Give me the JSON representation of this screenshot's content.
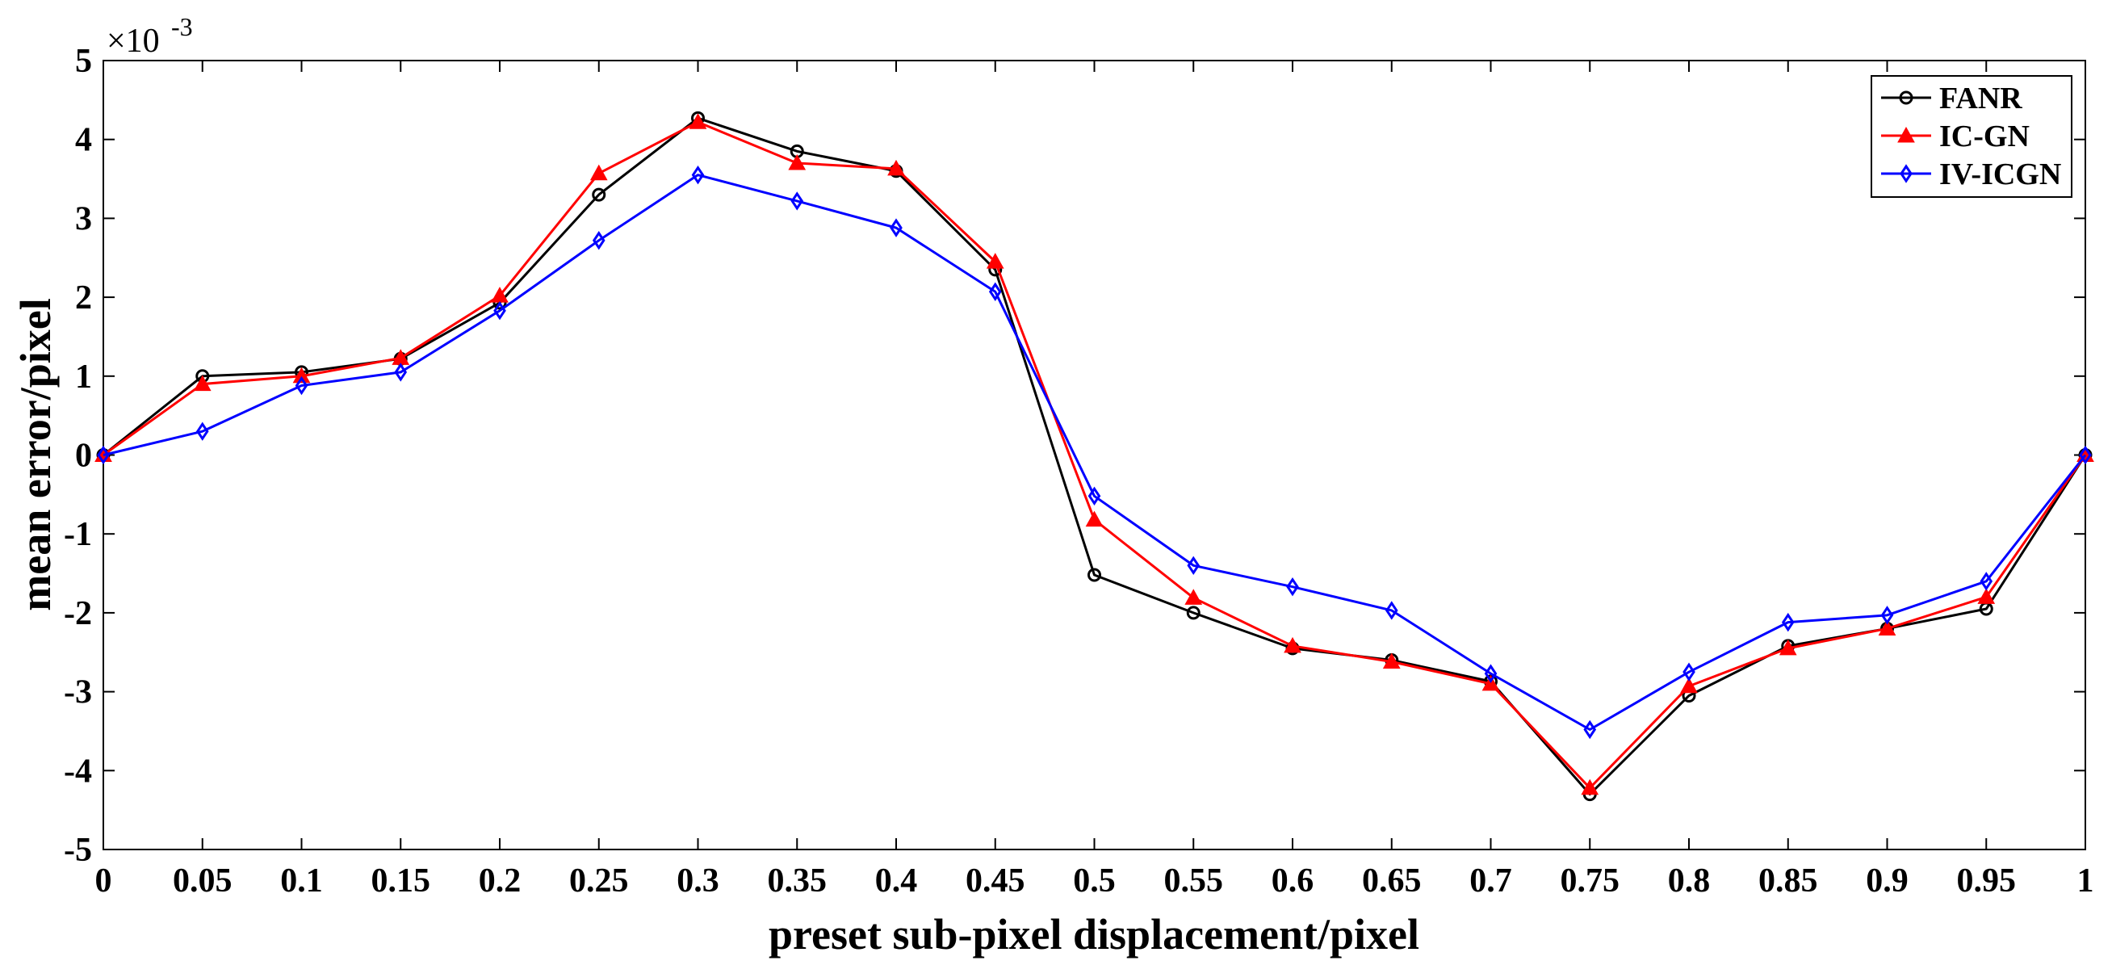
{
  "chart_data": {
    "type": "line",
    "title": "",
    "xlabel": "preset sub-pixel displacement/pixel",
    "ylabel": "mean error/pixel",
    "y_exponent_label": "×10",
    "y_exponent_power": "-3",
    "xlim": [
      0,
      1
    ],
    "ylim": [
      -5,
      5
    ],
    "x_ticks": [
      "0",
      "0.05",
      "0.1",
      "0.15",
      "0.2",
      "0.25",
      "0.3",
      "0.35",
      "0.4",
      "0.45",
      "0.5",
      "0.55",
      "0.6",
      "0.65",
      "0.7",
      "0.75",
      "0.8",
      "0.85",
      "0.9",
      "0.95",
      "1"
    ],
    "y_ticks": [
      "5",
      "4",
      "3",
      "2",
      "1",
      "0",
      "-1",
      "-2",
      "-3",
      "-4",
      "-5"
    ],
    "legend_position": "top-right",
    "x": [
      0,
      0.05,
      0.1,
      0.15,
      0.2,
      0.25,
      0.3,
      0.35,
      0.4,
      0.45,
      0.5,
      0.55,
      0.6,
      0.65,
      0.7,
      0.75,
      0.8,
      0.85,
      0.9,
      0.95,
      1
    ],
    "series": [
      {
        "name": "FANR",
        "color": "#000000",
        "marker": "circle",
        "values": [
          0,
          1.0,
          1.05,
          1.22,
          1.93,
          3.3,
          4.27,
          3.85,
          3.6,
          2.35,
          -1.52,
          -2.0,
          -2.45,
          -2.6,
          -2.87,
          -4.3,
          -3.05,
          -2.42,
          -2.2,
          -1.95,
          0
        ]
      },
      {
        "name": "IC-GN",
        "color": "#ff0000",
        "marker": "triangle",
        "values": [
          0,
          0.9,
          1.0,
          1.23,
          2.02,
          3.57,
          4.22,
          3.7,
          3.63,
          2.45,
          -0.82,
          -1.81,
          -2.42,
          -2.62,
          -2.9,
          -4.22,
          -2.93,
          -2.45,
          -2.2,
          -1.8,
          0
        ]
      },
      {
        "name": "IV-ICGN",
        "color": "#0000ff",
        "marker": "diamond",
        "values": [
          0,
          0.3,
          0.88,
          1.05,
          1.83,
          2.72,
          3.55,
          3.22,
          2.88,
          2.07,
          -0.52,
          -1.4,
          -1.67,
          -1.97,
          -2.77,
          -3.48,
          -2.75,
          -2.12,
          -2.03,
          -1.6,
          0
        ]
      }
    ]
  }
}
